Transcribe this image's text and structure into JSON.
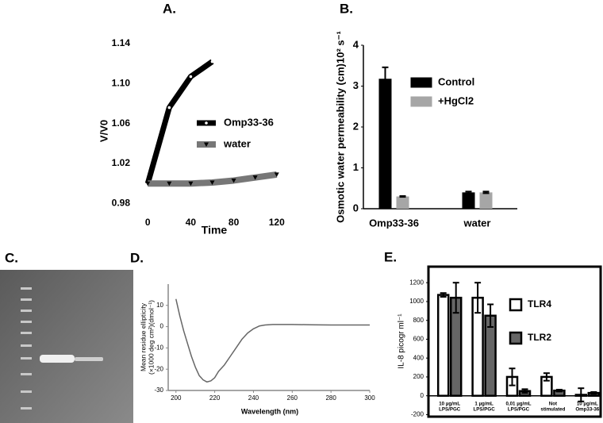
{
  "chart_data": [
    {
      "type": "line",
      "title": "A.",
      "xlabel": "Time",
      "ylabel": "V/V0",
      "xlim": [
        -12,
        132
      ],
      "xticks": [
        0,
        40,
        80,
        120
      ],
      "ylim": [
        0.97,
        1.14
      ],
      "yticks": [
        0.98,
        1.02,
        1.06,
        {
          "value": 1.1,
          "label": "1.10"
        },
        1.14
      ],
      "series": [
        {
          "name": "Omp33-36",
          "color": "#000000",
          "marker": "dot",
          "x": [
            0,
            20,
            40,
            60
          ],
          "values": [
            1.0,
            1.076,
            1.107,
            1.122
          ]
        },
        {
          "name": "water",
          "color": "#777777",
          "marker": "triangle",
          "x": [
            0,
            20,
            40,
            60,
            80,
            100,
            120
          ],
          "values": [
            1.0,
            1.0,
            1.0,
            1.001,
            1.003,
            1.006,
            1.009
          ]
        }
      ]
    },
    {
      "type": "bar",
      "title": "B.",
      "ylabel": "Osmotic water permeability (cm)10² s⁻¹",
      "categories": [
        "Omp33-36",
        "water"
      ],
      "ylim": [
        0,
        4
      ],
      "yticks": [
        0,
        1,
        2,
        3,
        4
      ],
      "series": [
        {
          "name": "Control",
          "color": "#000000",
          "values": [
            3.18,
            0.4
          ],
          "errors": [
            0.28,
            0.02
          ]
        },
        {
          "name": "+HgCl2",
          "color": "#a6a6a6",
          "values": [
            0.3,
            0.4
          ],
          "errors": [
            0.01,
            0.02
          ]
        }
      ]
    },
    {
      "type": "line",
      "title": "D.",
      "xlabel": "Wavelength (nm)",
      "ylabel": [
        "Mean residue ellipticity",
        "(×1000 deg cm²)(dmol⁻¹)"
      ],
      "xlim": [
        196,
        300
      ],
      "xticks": [
        200,
        220,
        240,
        260,
        280,
        300
      ],
      "ylim": [
        -30,
        20
      ],
      "yticks": [
        -30,
        -20,
        -10,
        0,
        10
      ],
      "series": [
        {
          "color": "#666666",
          "x": [
            200,
            202,
            204,
            206,
            208,
            210,
            212,
            214,
            216,
            218,
            220,
            222,
            225,
            228,
            231,
            234,
            237,
            240,
            243,
            246,
            250,
            260,
            270,
            280,
            290,
            300
          ],
          "values": [
            13,
            5,
            -2,
            -8,
            -14,
            -19,
            -23,
            -25,
            -26,
            -25.5,
            -24,
            -21,
            -18,
            -14,
            -10,
            -6,
            -3,
            -1,
            0.3,
            0.8,
            1,
            1,
            0.9,
            0.8,
            0.8,
            0.8
          ]
        }
      ]
    },
    {
      "type": "bar",
      "title": "E.",
      "ylabel": "IL-8 picogr ml⁻¹",
      "categories": [
        [
          "10 µg/mL",
          "LPS/PGC"
        ],
        [
          "1 µg/mL",
          "LPS/PGC"
        ],
        [
          "0,01 µg/mL",
          "LPS/PGC"
        ],
        [
          "Not",
          "stimulated"
        ],
        [
          "10 µg/mL",
          "Omp33-36"
        ]
      ],
      "ylim": [
        -230,
        1370
      ],
      "yticks": [
        -200,
        0,
        200,
        400,
        600,
        800,
        1000,
        1200
      ],
      "series": [
        {
          "name": "TLR4",
          "color": "#ffffff",
          "stroke": "#000000",
          "values": [
            1070,
            1040,
            200,
            200,
            10
          ],
          "errors": [
            20,
            160,
            90,
            40,
            70
          ]
        },
        {
          "name": "TLR2",
          "color": "#666666",
          "stroke": "#000000",
          "values": [
            1040,
            850,
            50,
            55,
            30
          ],
          "errors": [
            160,
            120,
            20,
            10,
            10
          ]
        }
      ]
    }
  ],
  "gel": {
    "label": "C."
  }
}
